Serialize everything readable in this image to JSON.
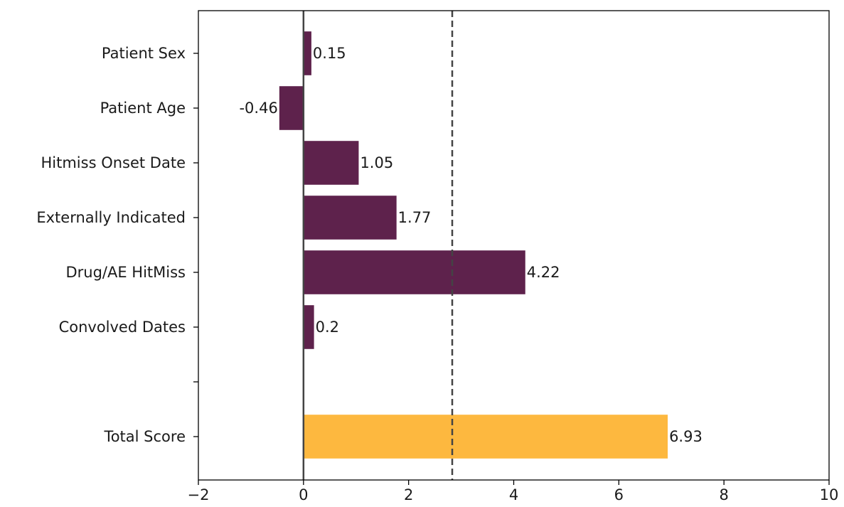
{
  "chart_data": {
    "type": "bar",
    "orientation": "horizontal",
    "title": "",
    "xlabel": "",
    "ylabel": "",
    "xlim": [
      -2,
      10
    ],
    "x_ticks": [
      -2,
      0,
      2,
      4,
      6,
      8,
      10
    ],
    "x_tick_labels": [
      "−2",
      "0",
      "2",
      "4",
      "6",
      "8",
      "10"
    ],
    "grid": false,
    "legend": "none",
    "zero_line": 0,
    "threshold_line": 2.83,
    "categories": [
      "Patient Sex",
      "Patient Age",
      "Hitmiss Onset Date",
      "Externally Indicated",
      "Drug/AE HitMiss",
      "Convolved Dates",
      "",
      "Total Score"
    ],
    "values": [
      0.15,
      -0.46,
      1.05,
      1.77,
      4.22,
      0.2,
      null,
      6.93
    ],
    "value_labels": [
      "0.15",
      "-0.46",
      "1.05",
      "1.77",
      "4.22",
      "0.2",
      "",
      "6.93"
    ],
    "colors": {
      "feature_bar": "#5e224c",
      "total_bar": "#fdb83f",
      "zero_line": "#444444",
      "threshold_line": "#444444",
      "axes": "#000000"
    }
  }
}
